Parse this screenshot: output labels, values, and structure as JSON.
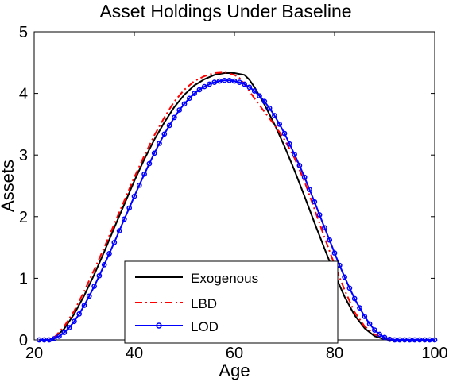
{
  "chart_data": {
    "type": "line",
    "title": "Asset Holdings Under Baseline",
    "xlabel": "Age",
    "ylabel": "Assets",
    "xlim": [
      20,
      100
    ],
    "ylim": [
      0,
      5
    ],
    "xticks": [
      20,
      40,
      60,
      80,
      100
    ],
    "yticks": [
      0,
      1,
      2,
      3,
      4,
      5
    ],
    "grid": false,
    "legend_position": "bottom-center",
    "series": [
      {
        "name": "Exogenous",
        "color": "#000000",
        "style": "solid",
        "marker": "none",
        "x": [
          21,
          22,
          23,
          24,
          26,
          28,
          30,
          32,
          34,
          36,
          38,
          40,
          42,
          44,
          46,
          48,
          50,
          52,
          54,
          56,
          58,
          60,
          62,
          63,
          64,
          66,
          68,
          70,
          72,
          74,
          76,
          78,
          80,
          82,
          84,
          86,
          88,
          90,
          91,
          92,
          93,
          94,
          96,
          98,
          100
        ],
        "y": [
          0,
          0,
          0,
          0.03,
          0.18,
          0.42,
          0.72,
          1.06,
          1.43,
          1.82,
          2.2,
          2.58,
          2.93,
          3.25,
          3.53,
          3.78,
          3.98,
          4.13,
          4.23,
          4.3,
          4.33,
          4.33,
          4.3,
          4.22,
          4.1,
          3.82,
          3.5,
          3.14,
          2.75,
          2.33,
          1.9,
          1.48,
          1.07,
          0.7,
          0.4,
          0.19,
          0.06,
          0.01,
          0,
          0,
          0,
          0,
          0,
          0,
          0
        ]
      },
      {
        "name": "LBD",
        "color": "#ff0000",
        "style": "dashdot",
        "marker": "none",
        "x": [
          21,
          22,
          23,
          24,
          26,
          28,
          30,
          32,
          34,
          36,
          38,
          40,
          42,
          44,
          46,
          48,
          50,
          52,
          54,
          56,
          58,
          60,
          61,
          62,
          64,
          66,
          68,
          70,
          72,
          74,
          76,
          78,
          80,
          82,
          84,
          86,
          88,
          90,
          92,
          93,
          94,
          96,
          98,
          100
        ],
        "y": [
          0,
          0,
          0,
          0.04,
          0.22,
          0.47,
          0.79,
          1.14,
          1.5,
          1.88,
          2.26,
          2.64,
          2.99,
          3.32,
          3.61,
          3.87,
          4.06,
          4.2,
          4.28,
          4.33,
          4.34,
          4.3,
          4.25,
          4.15,
          3.92,
          3.7,
          3.49,
          3.25,
          2.95,
          2.57,
          2.12,
          1.66,
          1.22,
          0.81,
          0.45,
          0.22,
          0.09,
          0.02,
          0,
          0,
          0,
          0,
          0,
          0
        ]
      },
      {
        "name": "LOD",
        "color": "#0000ff",
        "style": "solid",
        "marker": "circle",
        "x": [
          21,
          22,
          23,
          24,
          25,
          26,
          27,
          28,
          29,
          30,
          31,
          32,
          33,
          34,
          35,
          36,
          37,
          38,
          39,
          40,
          41,
          42,
          43,
          44,
          45,
          46,
          47,
          48,
          49,
          50,
          51,
          52,
          53,
          54,
          55,
          56,
          57,
          58,
          59,
          60,
          61,
          62,
          63,
          64,
          65,
          66,
          67,
          68,
          69,
          70,
          71,
          72,
          73,
          74,
          75,
          76,
          77,
          78,
          79,
          80,
          81,
          82,
          83,
          84,
          85,
          86,
          87,
          88,
          89,
          90,
          91,
          92,
          93,
          94,
          95,
          96,
          97,
          98,
          99,
          100
        ],
        "y": [
          0,
          0,
          0,
          0.02,
          0.06,
          0.12,
          0.2,
          0.3,
          0.42,
          0.56,
          0.71,
          0.87,
          1.04,
          1.22,
          1.4,
          1.58,
          1.77,
          1.96,
          2.14,
          2.33,
          2.51,
          2.69,
          2.86,
          3.03,
          3.19,
          3.34,
          3.48,
          3.61,
          3.73,
          3.83,
          3.92,
          4.0,
          4.06,
          4.11,
          4.15,
          4.18,
          4.2,
          4.21,
          4.21,
          4.2,
          4.18,
          4.15,
          4.1,
          4.04,
          3.96,
          3.87,
          3.76,
          3.64,
          3.5,
          3.35,
          3.18,
          3.01,
          2.83,
          2.64,
          2.44,
          2.24,
          2.03,
          1.82,
          1.62,
          1.41,
          1.21,
          1.02,
          0.84,
          0.67,
          0.52,
          0.38,
          0.26,
          0.16,
          0.09,
          0.04,
          0.01,
          0,
          0,
          0,
          0,
          0,
          0,
          0,
          0,
          0
        ]
      }
    ]
  }
}
